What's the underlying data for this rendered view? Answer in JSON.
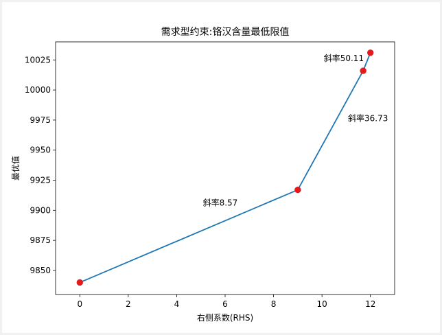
{
  "chart_data": {
    "type": "line",
    "title": "需求型约束:铬汉含量最低限值",
    "xlabel": "右侧系数(RHS)",
    "ylabel": "最优值",
    "xlim": [
      -1,
      13
    ],
    "ylim": [
      9830,
      10040
    ],
    "xticks": [
      0,
      2,
      4,
      6,
      8,
      10,
      12
    ],
    "yticks": [
      9850,
      9875,
      9900,
      9925,
      9950,
      9975,
      10000,
      10025
    ],
    "grid": false,
    "series": [
      {
        "x": [
          0,
          9,
          11.7,
          12
        ],
        "y": [
          9840,
          9917,
          10016,
          10031
        ],
        "line_color": "#1f77b4",
        "marker_color": "#e41a1c"
      }
    ],
    "annotations": [
      {
        "text": "斜率8.57",
        "x": 5.8,
        "y": 9904
      },
      {
        "text": "斜率36.73",
        "x": 11.9,
        "y": 9974
      },
      {
        "text": "斜率50.11",
        "x": 10.9,
        "y": 10024
      }
    ]
  }
}
